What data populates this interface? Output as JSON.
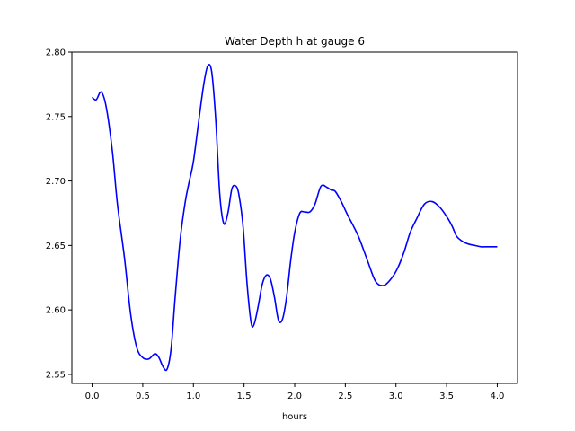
{
  "chart_data": {
    "type": "line",
    "title": "Water Depth h at gauge 6",
    "xlabel": "hours",
    "ylabel": "",
    "xlim": [
      -0.2,
      4.2
    ],
    "ylim": [
      2.543,
      2.8
    ],
    "grid": false,
    "legend": "none",
    "xticks": [
      0.0,
      0.5,
      1.0,
      1.5,
      2.0,
      2.5,
      3.0,
      3.5,
      4.0
    ],
    "xtick_labels": [
      "0.0",
      "0.5",
      "1.0",
      "1.5",
      "2.0",
      "2.5",
      "3.0",
      "3.5",
      "4.0"
    ],
    "yticks": [
      2.55,
      2.6,
      2.65,
      2.7,
      2.75,
      2.8
    ],
    "ytick_labels": [
      "2.55",
      "2.60",
      "2.65",
      "2.70",
      "2.75",
      "2.80"
    ],
    "series": [
      {
        "color": "#0000ff",
        "x": [
          0.0,
          0.04,
          0.09,
          0.14,
          0.2,
          0.25,
          0.32,
          0.38,
          0.44,
          0.5,
          0.56,
          0.62,
          0.66,
          0.7,
          0.74,
          0.78,
          0.82,
          0.87,
          0.92,
          0.96,
          1.0,
          1.05,
          1.1,
          1.14,
          1.18,
          1.22,
          1.26,
          1.3,
          1.34,
          1.38,
          1.42,
          1.45,
          1.49,
          1.53,
          1.57,
          1.6,
          1.64,
          1.68,
          1.72,
          1.76,
          1.8,
          1.84,
          1.88,
          1.92,
          1.96,
          2.0,
          2.05,
          2.1,
          2.15,
          2.2,
          2.26,
          2.32,
          2.36,
          2.4,
          2.46,
          2.52,
          2.58,
          2.64,
          2.72,
          2.8,
          2.88,
          2.96,
          3.02,
          3.08,
          3.14,
          3.2,
          3.28,
          3.36,
          3.44,
          3.52,
          3.56,
          3.6,
          3.66,
          3.72,
          3.78,
          3.84,
          3.9,
          3.96,
          4.0
        ],
        "y": [
          2.765,
          2.763,
          2.769,
          2.757,
          2.723,
          2.682,
          2.64,
          2.597,
          2.571,
          2.563,
          2.562,
          2.566,
          2.563,
          2.556,
          2.554,
          2.57,
          2.61,
          2.655,
          2.684,
          2.7,
          2.715,
          2.745,
          2.774,
          2.789,
          2.785,
          2.748,
          2.69,
          2.667,
          2.675,
          2.694,
          2.696,
          2.689,
          2.665,
          2.62,
          2.59,
          2.589,
          2.603,
          2.62,
          2.627,
          2.624,
          2.61,
          2.592,
          2.593,
          2.61,
          2.638,
          2.66,
          2.675,
          2.676,
          2.676,
          2.682,
          2.696,
          2.695,
          2.693,
          2.692,
          2.684,
          2.674,
          2.665,
          2.655,
          2.638,
          2.622,
          2.619,
          2.625,
          2.633,
          2.645,
          2.66,
          2.67,
          2.682,
          2.684,
          2.679,
          2.67,
          2.664,
          2.657,
          2.653,
          2.651,
          2.65,
          2.649,
          2.649,
          2.649,
          2.649
        ]
      }
    ]
  }
}
